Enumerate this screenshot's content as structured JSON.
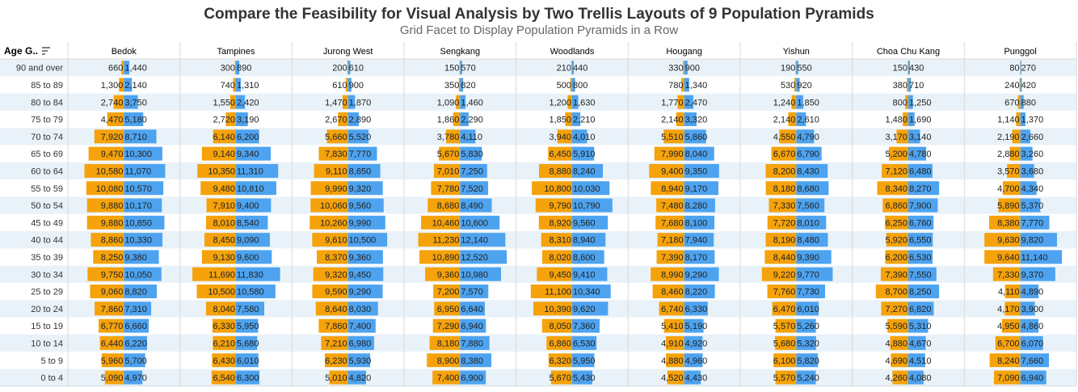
{
  "title": "Compare the Feasibility for Visual Analysis by Two Trellis Layouts of 9 Population Pyramids",
  "subtitle": "Grid Facet to Display Population Pyramids in a Row",
  "row_header": "Age G..",
  "colors": {
    "female": "#f5a20b",
    "male": "#4da3f0",
    "stripe": "#e9f2f8",
    "grid": "#d9d9d9",
    "text": "#333333"
  },
  "chart_data": {
    "type": "bar",
    "age_groups": [
      "90 and over",
      "85 to 89",
      "80 to 84",
      "75 to 79",
      "70 to 74",
      "65 to 69",
      "60 to 64",
      "55 to 59",
      "50 to 54",
      "45 to 49",
      "40 to 44",
      "35 to 39",
      "30 to 34",
      "25 to 29",
      "20 to 24",
      "15 to 19",
      "10 to 14",
      "5 to 9",
      "0 to 4"
    ],
    "areas": [
      {
        "name": "Bedok",
        "left": [
          660,
          1300,
          2740,
          4470,
          7920,
          9470,
          10580,
          10080,
          9880,
          9880,
          8860,
          8250,
          9750,
          9060,
          7860,
          6770,
          6440,
          5960,
          5090
        ],
        "right": [
          1440,
          2140,
          3750,
          5180,
          8710,
          10300,
          11070,
          10570,
          10170,
          10850,
          10330,
          9380,
          10050,
          8820,
          7310,
          6660,
          6220,
          5700,
          4970
        ]
      },
      {
        "name": "Tampines",
        "left": [
          300,
          740,
          1550,
          2720,
          6140,
          9140,
          10350,
          9480,
          7910,
          8010,
          8450,
          9130,
          11690,
          10500,
          8040,
          6330,
          6210,
          6430,
          6540
        ],
        "right": [
          890,
          1310,
          2420,
          3190,
          6200,
          9340,
          11310,
          10810,
          9400,
          8540,
          9090,
          9600,
          11830,
          10580,
          7580,
          5950,
          5680,
          6010,
          6300
        ]
      },
      {
        "name": "Jurong West",
        "left": [
          200,
          610,
          1470,
          2670,
          5660,
          7830,
          9110,
          9990,
          10060,
          10260,
          9610,
          8370,
          9320,
          9590,
          8640,
          7860,
          7210,
          6230,
          5010
        ],
        "right": [
          610,
          900,
          1870,
          2890,
          5520,
          7770,
          8650,
          9320,
          9560,
          9990,
          10500,
          9360,
          9450,
          9290,
          8030,
          7400,
          6980,
          5930,
          4820
        ]
      },
      {
        "name": "Sengkang",
        "left": [
          150,
          350,
          1090,
          1860,
          3780,
          5670,
          7010,
          7780,
          8680,
          10460,
          11230,
          10890,
          9360,
          7200,
          6950,
          7290,
          8180,
          8900,
          7400
        ],
        "right": [
          570,
          820,
          1460,
          2290,
          4110,
          5830,
          7250,
          7520,
          8490,
          10600,
          12140,
          12520,
          10980,
          7570,
          6640,
          6940,
          7880,
          8380,
          6900
        ]
      },
      {
        "name": "Woodlands",
        "left": [
          210,
          500,
          1200,
          1850,
          3940,
          6450,
          8880,
          10800,
          9790,
          8920,
          8310,
          8020,
          9450,
          11100,
          10390,
          8050,
          6860,
          6320,
          5670
        ],
        "right": [
          440,
          800,
          1630,
          2210,
          4010,
          5910,
          8240,
          10030,
          10790,
          9560,
          8940,
          8600,
          9410,
          10340,
          9620,
          7360,
          6530,
          5950,
          5430
        ]
      },
      {
        "name": "Hougang",
        "left": [
          330,
          780,
          1770,
          2140,
          5510,
          7990,
          9400,
          8940,
          7480,
          7680,
          7180,
          7390,
          8990,
          8460,
          6740,
          5410,
          4910,
          4880,
          4520
        ],
        "right": [
          900,
          1340,
          2470,
          3320,
          5860,
          8040,
          9350,
          9170,
          8280,
          8100,
          7940,
          8170,
          9290,
          8220,
          6330,
          5190,
          4920,
          4960,
          4430
        ]
      },
      {
        "name": "Yishun",
        "left": [
          190,
          530,
          1240,
          2140,
          4550,
          6670,
          8200,
          8180,
          7330,
          7720,
          8190,
          8440,
          9220,
          7760,
          6470,
          5570,
          5680,
          6100,
          5570
        ],
        "right": [
          550,
          920,
          1850,
          2610,
          4790,
          6790,
          8430,
          8680,
          7560,
          8010,
          8480,
          9390,
          9770,
          7730,
          6010,
          5260,
          5320,
          5820,
          5240
        ]
      },
      {
        "name": "Choa Chu Kang",
        "left": [
          150,
          380,
          800,
          1480,
          3170,
          5200,
          7120,
          8340,
          6860,
          6250,
          5920,
          6200,
          7390,
          8700,
          7270,
          5590,
          4880,
          4690,
          4260
        ],
        "right": [
          430,
          710,
          1250,
          1690,
          3140,
          4780,
          6480,
          8270,
          7900,
          6760,
          6550,
          6530,
          7550,
          8250,
          6820,
          5310,
          4670,
          4510,
          4080
        ]
      },
      {
        "name": "Punggol",
        "left": [
          80,
          240,
          670,
          1140,
          2190,
          2880,
          3570,
          4700,
          5890,
          8380,
          9630,
          9640,
          7330,
          4110,
          4170,
          4950,
          6700,
          8240,
          7090
        ],
        "right": [
          270,
          420,
          880,
          1370,
          2660,
          3260,
          3680,
          4340,
          5370,
          7770,
          9820,
          11140,
          9370,
          4890,
          3900,
          4860,
          6070,
          7660,
          6940
        ]
      }
    ]
  }
}
